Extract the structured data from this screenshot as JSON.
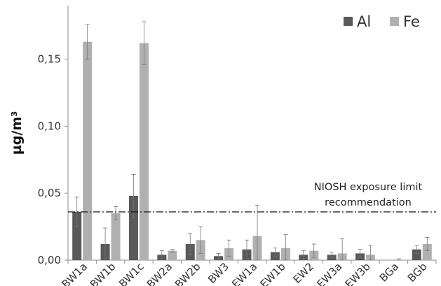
{
  "chart_data": {
    "type": "bar",
    "title": "",
    "xlabel": "",
    "ylabel": "µg/m³",
    "ylim": [
      0,
      0.19
    ],
    "yticks": [
      0.0,
      0.05,
      0.1,
      0.15
    ],
    "ytick_labels": [
      "0,00",
      "0,05",
      "0,10",
      "0,15"
    ],
    "categories": [
      "BW1a",
      "BW1b",
      "BW1c",
      "BW2a",
      "BW2b",
      "BW3",
      "EW1a",
      "EW1b",
      "EW2",
      "EW3a",
      "EW3b",
      "BGa",
      "BGb"
    ],
    "series": [
      {
        "name": "Al",
        "color": "#595959",
        "values": [
          0.036,
          0.012,
          0.048,
          0.004,
          0.012,
          0.003,
          0.008,
          0.006,
          0.004,
          0.004,
          0.005,
          0.0,
          0.008
        ],
        "errors": [
          0.011,
          0.012,
          0.016,
          0.003,
          0.008,
          0.002,
          0.007,
          0.003,
          0.003,
          0.002,
          0.003,
          0.0,
          0.003
        ]
      },
      {
        "name": "Fe",
        "color": "#b0b0b0",
        "values": [
          0.163,
          0.035,
          0.162,
          0.007,
          0.015,
          0.009,
          0.018,
          0.009,
          0.007,
          0.005,
          0.004,
          0.0,
          0.012
        ],
        "errors": [
          0.013,
          0.005,
          0.016,
          0.001,
          0.01,
          0.006,
          0.023,
          0.01,
          0.005,
          0.011,
          0.007,
          0.001,
          0.005
        ]
      }
    ],
    "reference_line": {
      "value": 0.036,
      "label_line1": "NIOSH exposure limit",
      "label_line2": "recommendation",
      "style": "dash-dot"
    },
    "legend": {
      "position": "top-right"
    },
    "grid": false
  }
}
